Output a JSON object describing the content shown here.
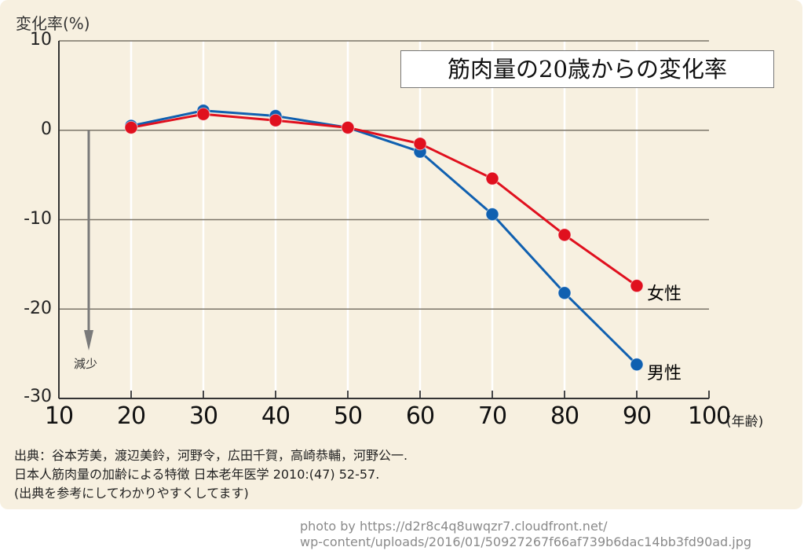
{
  "chart_data": {
    "type": "line",
    "title": "筋肉量の20歳からの変化率",
    "ylabel": "変化率(%)",
    "xlabel": "(年齢)",
    "x": [
      20,
      30,
      40,
      50,
      60,
      70,
      80,
      90
    ],
    "xlim": [
      10,
      100
    ],
    "ylim": [
      -30,
      10
    ],
    "xticks": [
      "10",
      "20",
      "30",
      "40",
      "50",
      "60",
      "70",
      "80",
      "90",
      "100"
    ],
    "yticks": [
      "10",
      "0",
      "-10",
      "-20",
      "-30"
    ],
    "grid": true,
    "series": [
      {
        "name": "女性",
        "color": "#e0101e",
        "values": [
          0.3,
          1.8,
          1.1,
          0.3,
          -1.5,
          -5.4,
          -11.7,
          -17.4
        ]
      },
      {
        "name": "男性",
        "color": "#1060b0",
        "values": [
          0.5,
          2.2,
          1.6,
          0.3,
          -2.4,
          -9.4,
          -18.2,
          -26.2
        ]
      }
    ],
    "annotations": [
      {
        "text": "減少",
        "arrow": "down"
      }
    ],
    "legend_placement": "inline-right"
  },
  "source": {
    "lines": [
      "出典：谷本芳美，渡辺美鈴，河野令，広田千賀，高崎恭輔，河野公一.",
      "日本人筋肉量の加齢による特徴  日本老年医学 2010:(47) 52-57.",
      "(出典を参考にしてわかりやすくしてます)"
    ]
  },
  "credit": {
    "lines": [
      "photo by https://d2r8c4q8uwqzr7.cloudfront.net/",
      "wp-content/uploads/2016/01/50927267f66af739b6dac14bb3fd90ad.jpg"
    ]
  },
  "colors": {
    "background": "#f7f0e0",
    "female": "#e0101e",
    "male": "#1060b0",
    "grid": "#7a7468"
  }
}
